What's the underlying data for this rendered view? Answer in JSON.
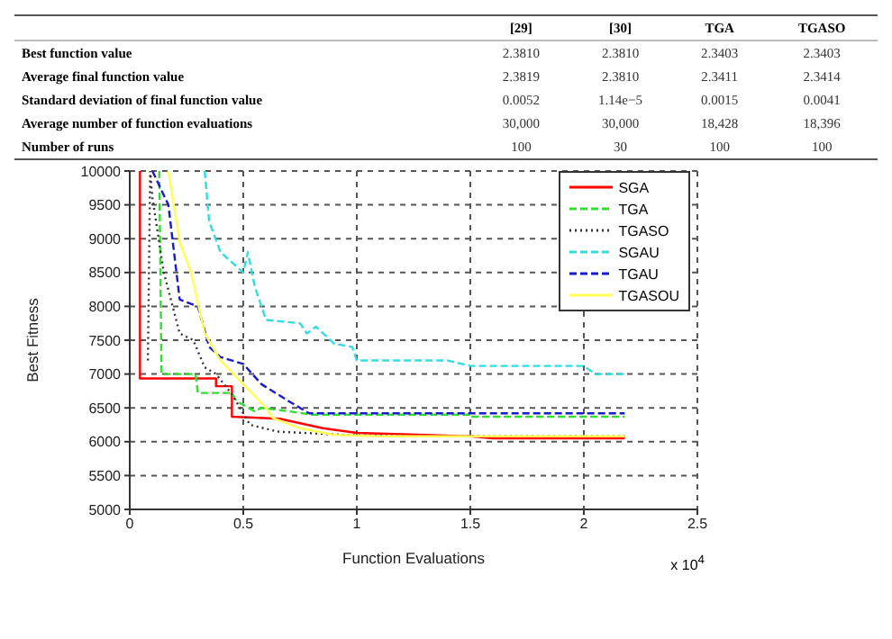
{
  "chart_data": [
    {
      "type": "other",
      "annotations": [
        "[29]",
        "[30]",
        "TGA",
        "TGASO",
        "Best function value",
        "2.3810",
        "2.3810",
        "2.3403",
        "2.3403",
        "Average final function value",
        "2.3819",
        "2.3810",
        "2.3411",
        "2.3414",
        "Standard deviation of final function value",
        "0.0052",
        "1.14e−5",
        "0.0015",
        "0.0041",
        "Average number of function evaluations",
        "30,000",
        "30,000",
        "18,428",
        "18,396",
        "Number of runs",
        "100",
        "30",
        "100",
        "100"
      ]
    },
    {
      "type": "line",
      "xlabel": "Function Evaluations",
      "ylabel": "Best Fitness",
      "annotations": [
        "x 10$^{4}$"
      ],
      "xlim": [
        0,
        2.5
      ],
      "xticks": [
        0,
        0.5,
        1,
        1.5,
        2,
        2.5
      ],
      "ylim": [
        5000,
        10000
      ],
      "yticks": [
        5000,
        5500,
        6000,
        6500,
        7000,
        7500,
        8000,
        8500,
        9000,
        9500,
        10000
      ],
      "grid": true,
      "legend": "top right",
      "marker": "none",
      "series": [
        {
          "name": "SGA",
          "color": "#ff0000",
          "line_style": "solid",
          "x": [
            0.045,
            0.045,
            0.38,
            0.38,
            0.45,
            0.45,
            0.66,
            0.85,
            1.0,
            1.3,
            1.5,
            1.6,
            2.18
          ],
          "values": [
            10000,
            6935,
            6935,
            6820,
            6820,
            6370,
            6340,
            6200,
            6130,
            6100,
            6080,
            6050,
            6050
          ]
        },
        {
          "name": "TGA",
          "color": "#33dd33",
          "line_style": "dashed",
          "x": [
            0.13,
            0.14,
            0.29,
            0.3,
            0.45,
            0.47,
            0.55,
            0.58,
            0.7,
            0.8,
            1.5,
            1.5,
            2.18
          ],
          "values": [
            10000,
            7000,
            7000,
            6720,
            6720,
            6600,
            6450,
            6500,
            6450,
            6400,
            6400,
            6370,
            6370
          ]
        },
        {
          "name": "TGASO",
          "color": "#333333",
          "line_style": "dotted",
          "x": [
            0.08,
            0.09,
            0.1,
            0.15,
            0.22,
            0.28,
            0.33,
            0.38,
            0.45,
            0.53,
            0.65,
            0.95,
            1.2,
            2.18
          ],
          "values": [
            7200,
            10000,
            9600,
            8500,
            7600,
            7500,
            7100,
            7000,
            6700,
            6250,
            6150,
            6100,
            6080,
            6080
          ]
        },
        {
          "name": "SGAU",
          "color": "#33dddd",
          "line_style": "dashed",
          "x": [
            0.33,
            0.35,
            0.4,
            0.5,
            0.52,
            0.55,
            0.6,
            0.75,
            0.78,
            0.82,
            0.9,
            0.98,
            1.0,
            1.4,
            1.5,
            2.0,
            2.05,
            2.18
          ],
          "values": [
            10000,
            9250,
            8800,
            8500,
            8800,
            8300,
            7800,
            7750,
            7600,
            7700,
            7450,
            7400,
            7200,
            7200,
            7120,
            7120,
            7000,
            7000
          ]
        },
        {
          "name": "TGAU",
          "color": "#1a1acc",
          "line_style": "dashed",
          "x": [
            0.1,
            0.17,
            0.22,
            0.3,
            0.35,
            0.4,
            0.5,
            0.58,
            0.7,
            0.79,
            2.18
          ],
          "values": [
            10000,
            9500,
            8100,
            8000,
            7400,
            7250,
            7150,
            6850,
            6600,
            6420,
            6420
          ]
        },
        {
          "name": "TGASOU",
          "color": "#ffff55",
          "line_style": "solid",
          "x": [
            0.17,
            0.22,
            0.27,
            0.33,
            0.4,
            0.5,
            0.6,
            0.63,
            0.75,
            0.9,
            1.1,
            2.18
          ],
          "values": [
            10000,
            8950,
            8500,
            7600,
            7200,
            6850,
            6500,
            6350,
            6200,
            6100,
            6080,
            6080
          ]
        }
      ]
    }
  ]
}
